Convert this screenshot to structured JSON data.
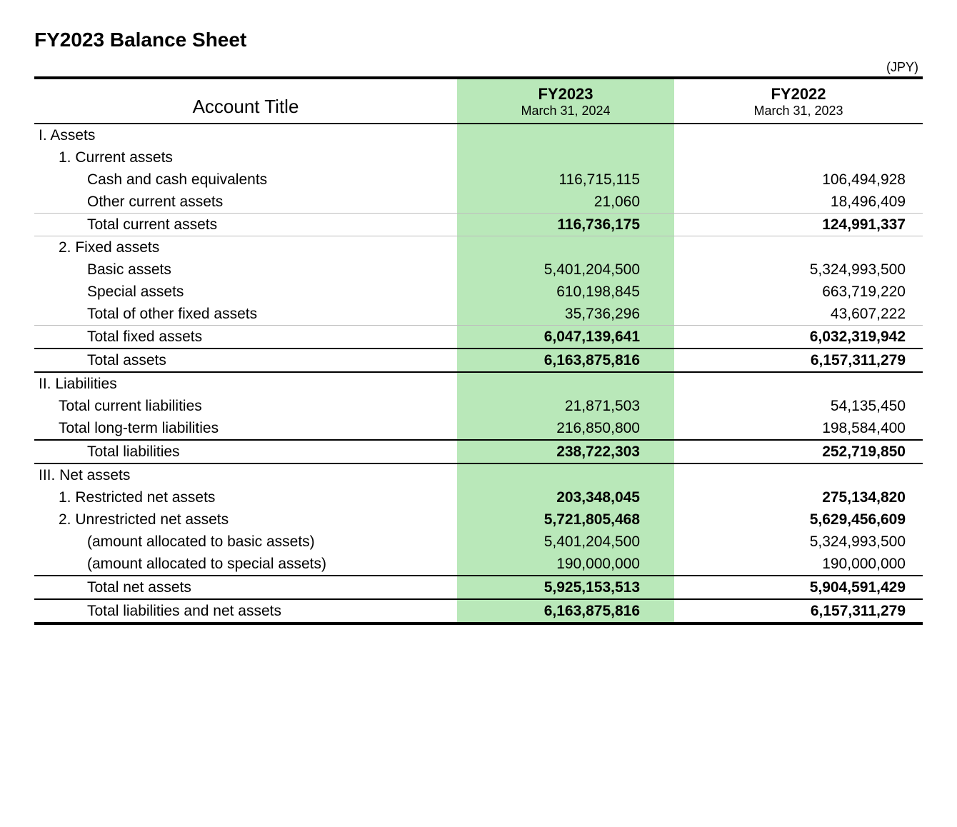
{
  "title": "FY2023 Balance Sheet",
  "currency_label": "(JPY)",
  "highlight_color": "#b9e8b9",
  "columns": {
    "account_title": "Account Title",
    "fy2023": {
      "label": "FY2023",
      "date": "March 31, 2024"
    },
    "fy2022": {
      "label": "FY2022",
      "date": "March 31, 2023"
    }
  },
  "sections": {
    "assets": {
      "heading": "I. Assets",
      "current": {
        "heading": "1. Current assets",
        "cash": {
          "label": "Cash and cash equivalents",
          "fy23": "116,715,115",
          "fy22": "106,494,928"
        },
        "other": {
          "label": "Other current assets",
          "fy23": "21,060",
          "fy22": "18,496,409"
        },
        "total": {
          "label": "Total current assets",
          "fy23": "116,736,175",
          "fy22": "124,991,337"
        }
      },
      "fixed": {
        "heading": "2. Fixed assets",
        "basic": {
          "label": "Basic assets",
          "fy23": "5,401,204,500",
          "fy22": "5,324,993,500"
        },
        "special": {
          "label": "Special assets",
          "fy23": "610,198,845",
          "fy22": "663,719,220"
        },
        "other": {
          "label": "Total of other fixed assets",
          "fy23": "35,736,296",
          "fy22": "43,607,222"
        },
        "total": {
          "label": "Total fixed assets",
          "fy23": "6,047,139,641",
          "fy22": "6,032,319,942"
        }
      },
      "total": {
        "label": "Total assets",
        "fy23": "6,163,875,816",
        "fy22": "6,157,311,279"
      }
    },
    "liabilities": {
      "heading": "II. Liabilities",
      "current": {
        "label": "Total current liabilities",
        "fy23": "21,871,503",
        "fy22": "54,135,450"
      },
      "longterm": {
        "label": "Total long-term liabilities",
        "fy23": "216,850,800",
        "fy22": "198,584,400"
      },
      "total": {
        "label": "Total liabilities",
        "fy23": "238,722,303",
        "fy22": "252,719,850"
      }
    },
    "net_assets": {
      "heading": "III. Net assets",
      "restricted": {
        "label": "1. Restricted net assets",
        "fy23": "203,348,045",
        "fy22": "275,134,820"
      },
      "unrestricted": {
        "label": "2. Unrestricted net assets",
        "fy23": "5,721,805,468",
        "fy22": "5,629,456,609"
      },
      "alloc_basic": {
        "label": "(amount allocated to basic assets)",
        "fy23": "5,401,204,500",
        "fy22": "5,324,993,500"
      },
      "alloc_special": {
        "label": "(amount allocated to special assets)",
        "fy23": "190,000,000",
        "fy22": "190,000,000"
      },
      "total": {
        "label": "Total net assets",
        "fy23": "5,925,153,513",
        "fy22": "5,904,591,429"
      }
    },
    "grand_total": {
      "label": "Total liabilities and net assets",
      "fy23": "6,163,875,816",
      "fy22": "6,157,311,279"
    }
  }
}
